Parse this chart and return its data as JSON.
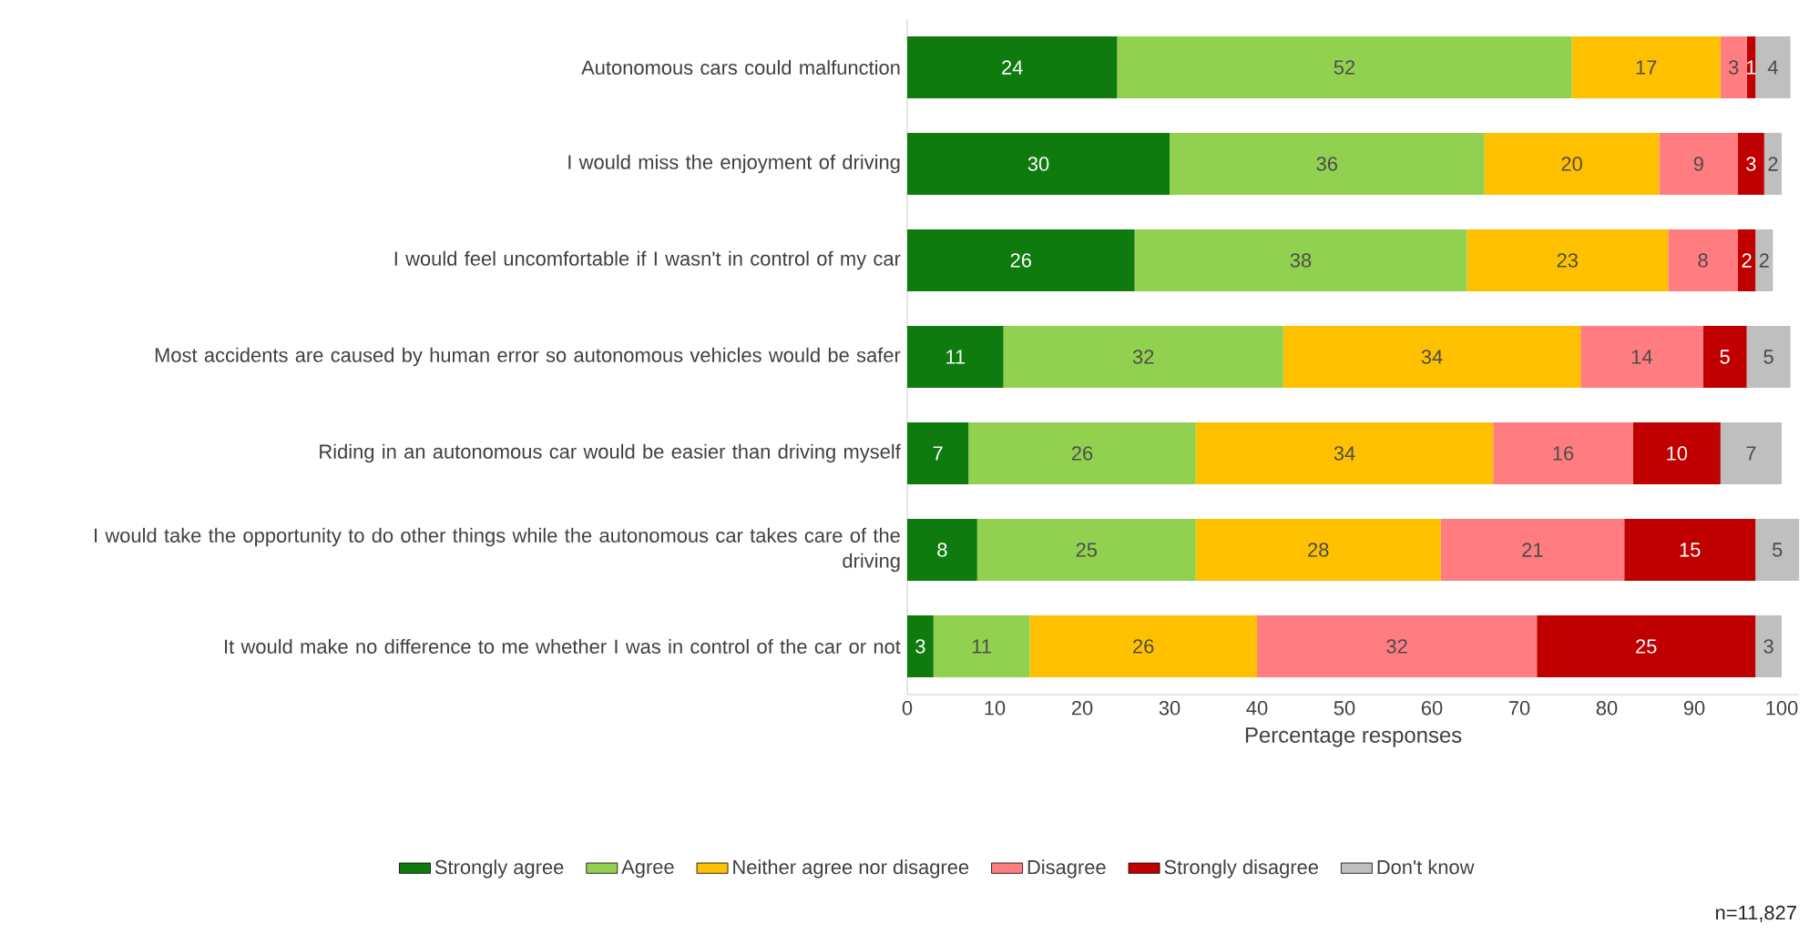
{
  "chart_data": {
    "type": "bar",
    "orientation": "horizontal",
    "stacked": true,
    "data_labels": true,
    "legend": "bottom",
    "grid": false,
    "xlabel": "Percentage responses",
    "xlim": [
      0,
      102
    ],
    "xticks": [
      0,
      10,
      20,
      30,
      40,
      50,
      60,
      70,
      80,
      90,
      100
    ],
    "categories": [
      "Autonomous cars could malfunction",
      "I would miss the enjoyment of driving",
      "I would feel uncomfortable if I wasn't in control of my car",
      "Most accidents are caused by human error so autonomous vehicles would be safer",
      "Riding in an autonomous car would be easier than driving myself",
      "I would take the opportunity to do other things while the autonomous car takes care of the driving",
      "It would make no difference to me whether I was in control of the car or not"
    ],
    "series": [
      {
        "name": "Strongly agree",
        "color": "#0f7b0f",
        "values": [
          24,
          30,
          26,
          11,
          7,
          8,
          3
        ]
      },
      {
        "name": "Agree",
        "color": "#92d050",
        "values": [
          52,
          36,
          38,
          32,
          26,
          25,
          11
        ]
      },
      {
        "name": "Neither agree nor disagree",
        "color": "#ffc000",
        "values": [
          17,
          20,
          23,
          34,
          34,
          28,
          26
        ]
      },
      {
        "name": "Disagree",
        "color": "#ff7c80",
        "values": [
          3,
          9,
          8,
          14,
          16,
          21,
          32
        ]
      },
      {
        "name": "Strongly disagree",
        "color": "#c00000",
        "values": [
          1,
          3,
          2,
          5,
          10,
          15,
          25
        ]
      },
      {
        "name": "Don't know",
        "color": "#bfbfbf",
        "values": [
          4,
          2,
          2,
          5,
          7,
          5,
          3
        ]
      }
    ],
    "annotations": [
      "n=11,827"
    ]
  }
}
